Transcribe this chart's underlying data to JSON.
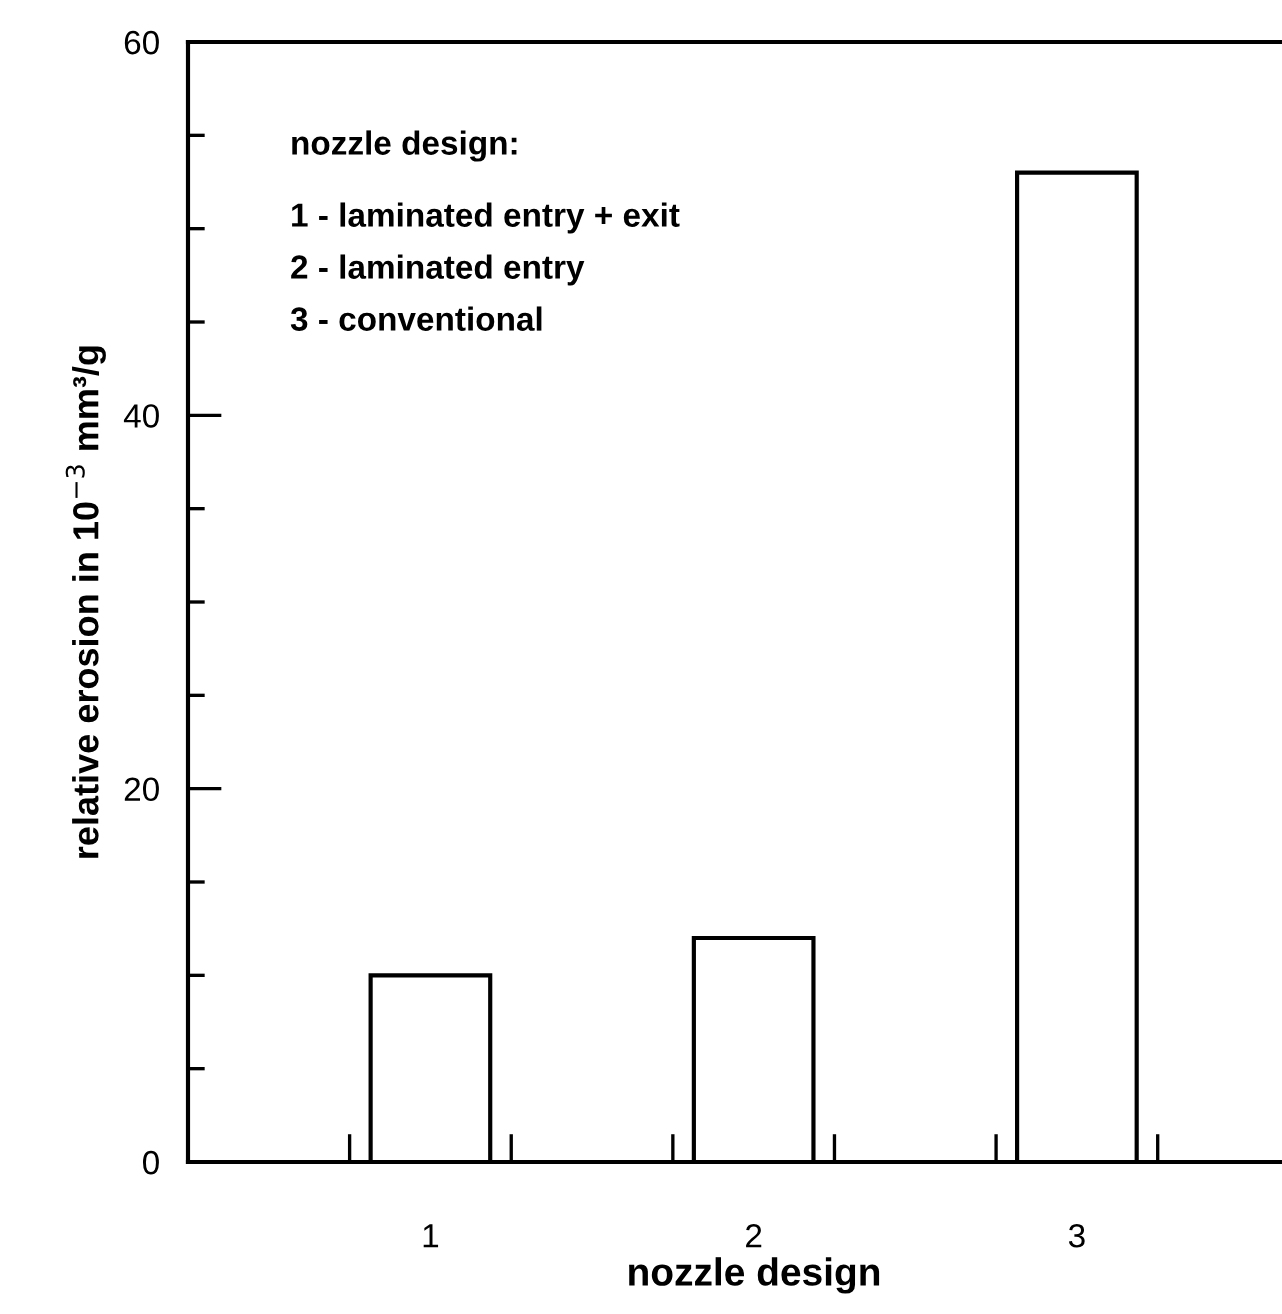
{
  "chart_data": {
    "type": "bar",
    "xlabel": "nozzle design",
    "ylabel": "relative erosion in 10$^{−3}$ mm³/g",
    "categories": [
      "1",
      "2",
      "3"
    ],
    "values": [
      10,
      12,
      53
    ],
    "color": "#ffffff",
    "ylim": [
      0,
      60
    ],
    "yticks": [
      0,
      {
        "value": 5,
        "label": null
      },
      {
        "value": 10,
        "label": null
      },
      {
        "value": 15,
        "label": null
      },
      20,
      {
        "value": 25,
        "label": null
      },
      {
        "value": 30,
        "label": null
      },
      {
        "value": 35,
        "label": null
      },
      40,
      {
        "value": 45,
        "label": null
      },
      {
        "value": 50,
        "label": null
      },
      {
        "value": 55,
        "label": null
      },
      60
    ],
    "grid": false,
    "legend": false,
    "annotations": [
      "nozzle design:",
      "1 - laminated entry + exit",
      "2 - laminated entry",
      "3 - conventional"
    ]
  }
}
